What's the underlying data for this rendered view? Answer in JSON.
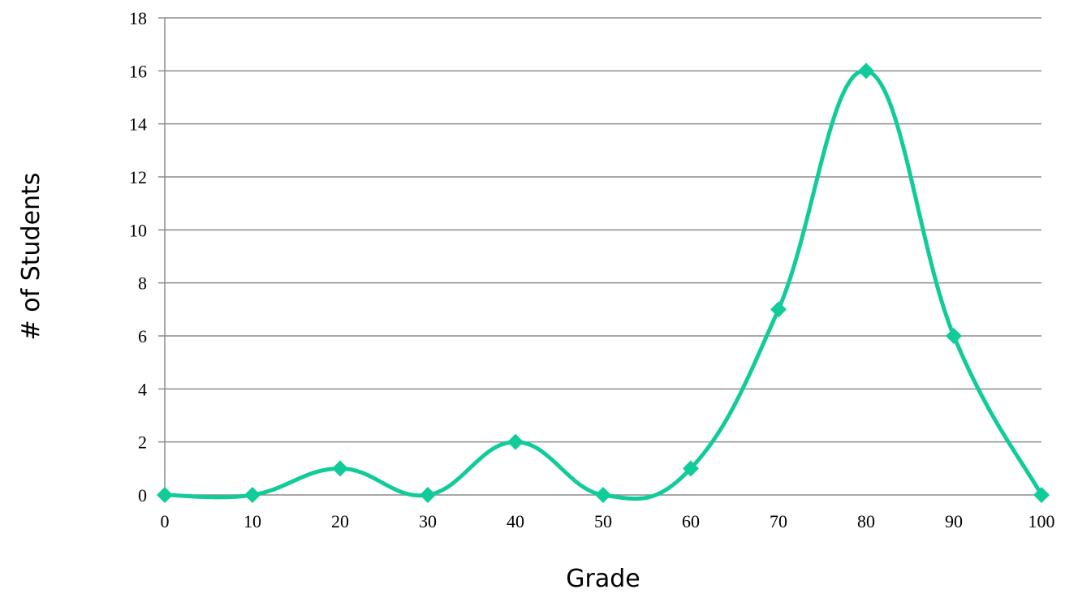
{
  "chart_data": {
    "type": "line",
    "title": "",
    "xlabel": "Grade",
    "ylabel": "# of Students",
    "x": [
      0,
      10,
      20,
      30,
      40,
      50,
      60,
      70,
      80,
      90,
      100
    ],
    "series": [
      {
        "values": [
          0,
          0,
          1,
          0,
          2,
          0,
          1,
          7,
          16,
          6,
          0
        ],
        "color": "#11cc99"
      }
    ],
    "xlim": [
      0,
      100
    ],
    "ylim": [
      0,
      18
    ],
    "x_ticks": [
      "0",
      "10",
      "20",
      "30",
      "40",
      "50",
      "60",
      "70",
      "80",
      "90",
      "100"
    ],
    "y_ticks": [
      "0",
      "2",
      "4",
      "6",
      "8",
      "10",
      "12",
      "14",
      "16",
      "18"
    ],
    "grid": "horizontal",
    "legend": "none",
    "line_style": "smoothed",
    "marker": "diamond",
    "colors": {
      "series": "#11cc99",
      "grid": "#8c8c8c"
    }
  }
}
